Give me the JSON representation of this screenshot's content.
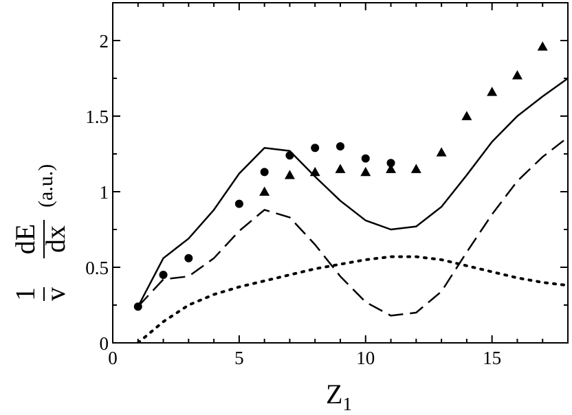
{
  "chart_data": {
    "type": "line",
    "title": "",
    "xlabel": {
      "main": "Z",
      "sub": "1"
    },
    "ylabel": {
      "frac1_num": "1",
      "frac1_den": "v",
      "frac2_num": "dE",
      "frac2_den": "dx",
      "unit": "(a.u.)"
    },
    "xlim": [
      0,
      18
    ],
    "ylim": [
      0,
      2.25
    ],
    "xticks": [
      0,
      5,
      10,
      15
    ],
    "xtick_labels": [
      "0",
      "5",
      "10",
      "15"
    ],
    "yticks": [
      0,
      0.5,
      1,
      1.5,
      2
    ],
    "ytick_labels": [
      "0",
      "0.5",
      "1",
      "1.5",
      "2"
    ],
    "grid": false,
    "legend": "none",
    "series": [
      {
        "style": "solid",
        "color": "#000000",
        "x": [
          1,
          2,
          3,
          4,
          5,
          6,
          7,
          8,
          9,
          10,
          11,
          12,
          13,
          14,
          15,
          16,
          17,
          18
        ],
        "y": [
          0.24,
          0.56,
          0.69,
          0.88,
          1.12,
          1.29,
          1.27,
          1.1,
          0.94,
          0.81,
          0.75,
          0.77,
          0.9,
          1.11,
          1.33,
          1.5,
          1.63,
          1.75
        ]
      },
      {
        "style": "dashed",
        "color": "#000000",
        "x": [
          1,
          2,
          3,
          4,
          5,
          6,
          7,
          8,
          9,
          10,
          11,
          12,
          13,
          14,
          15,
          16,
          17,
          18
        ],
        "y": [
          0.24,
          0.42,
          0.44,
          0.56,
          0.74,
          0.88,
          0.83,
          0.65,
          0.44,
          0.27,
          0.18,
          0.2,
          0.34,
          0.6,
          0.85,
          1.07,
          1.23,
          1.36
        ]
      },
      {
        "style": "dotted",
        "color": "#000000",
        "x": [
          1,
          2,
          3,
          4,
          5,
          6,
          7,
          8,
          9,
          10,
          11,
          12,
          13,
          14,
          15,
          16,
          17,
          18
        ],
        "y": [
          0.0,
          0.14,
          0.25,
          0.32,
          0.37,
          0.41,
          0.45,
          0.49,
          0.52,
          0.55,
          0.57,
          0.57,
          0.55,
          0.51,
          0.47,
          0.43,
          0.4,
          0.38
        ]
      },
      {
        "style": "markers",
        "marker": "circle",
        "color": "#000000",
        "x": [
          1,
          2,
          3,
          5,
          6,
          7,
          8,
          9,
          10,
          11
        ],
        "y": [
          0.24,
          0.45,
          0.56,
          0.92,
          1.13,
          1.24,
          1.29,
          1.3,
          1.22,
          1.19
        ]
      },
      {
        "style": "markers",
        "marker": "triangle",
        "color": "#000000",
        "x": [
          6,
          7,
          8,
          9,
          10,
          11,
          12,
          13,
          14,
          15,
          16,
          17
        ],
        "y": [
          1.0,
          1.11,
          1.13,
          1.15,
          1.13,
          1.15,
          1.15,
          1.26,
          1.5,
          1.66,
          1.77,
          1.96
        ]
      }
    ]
  }
}
